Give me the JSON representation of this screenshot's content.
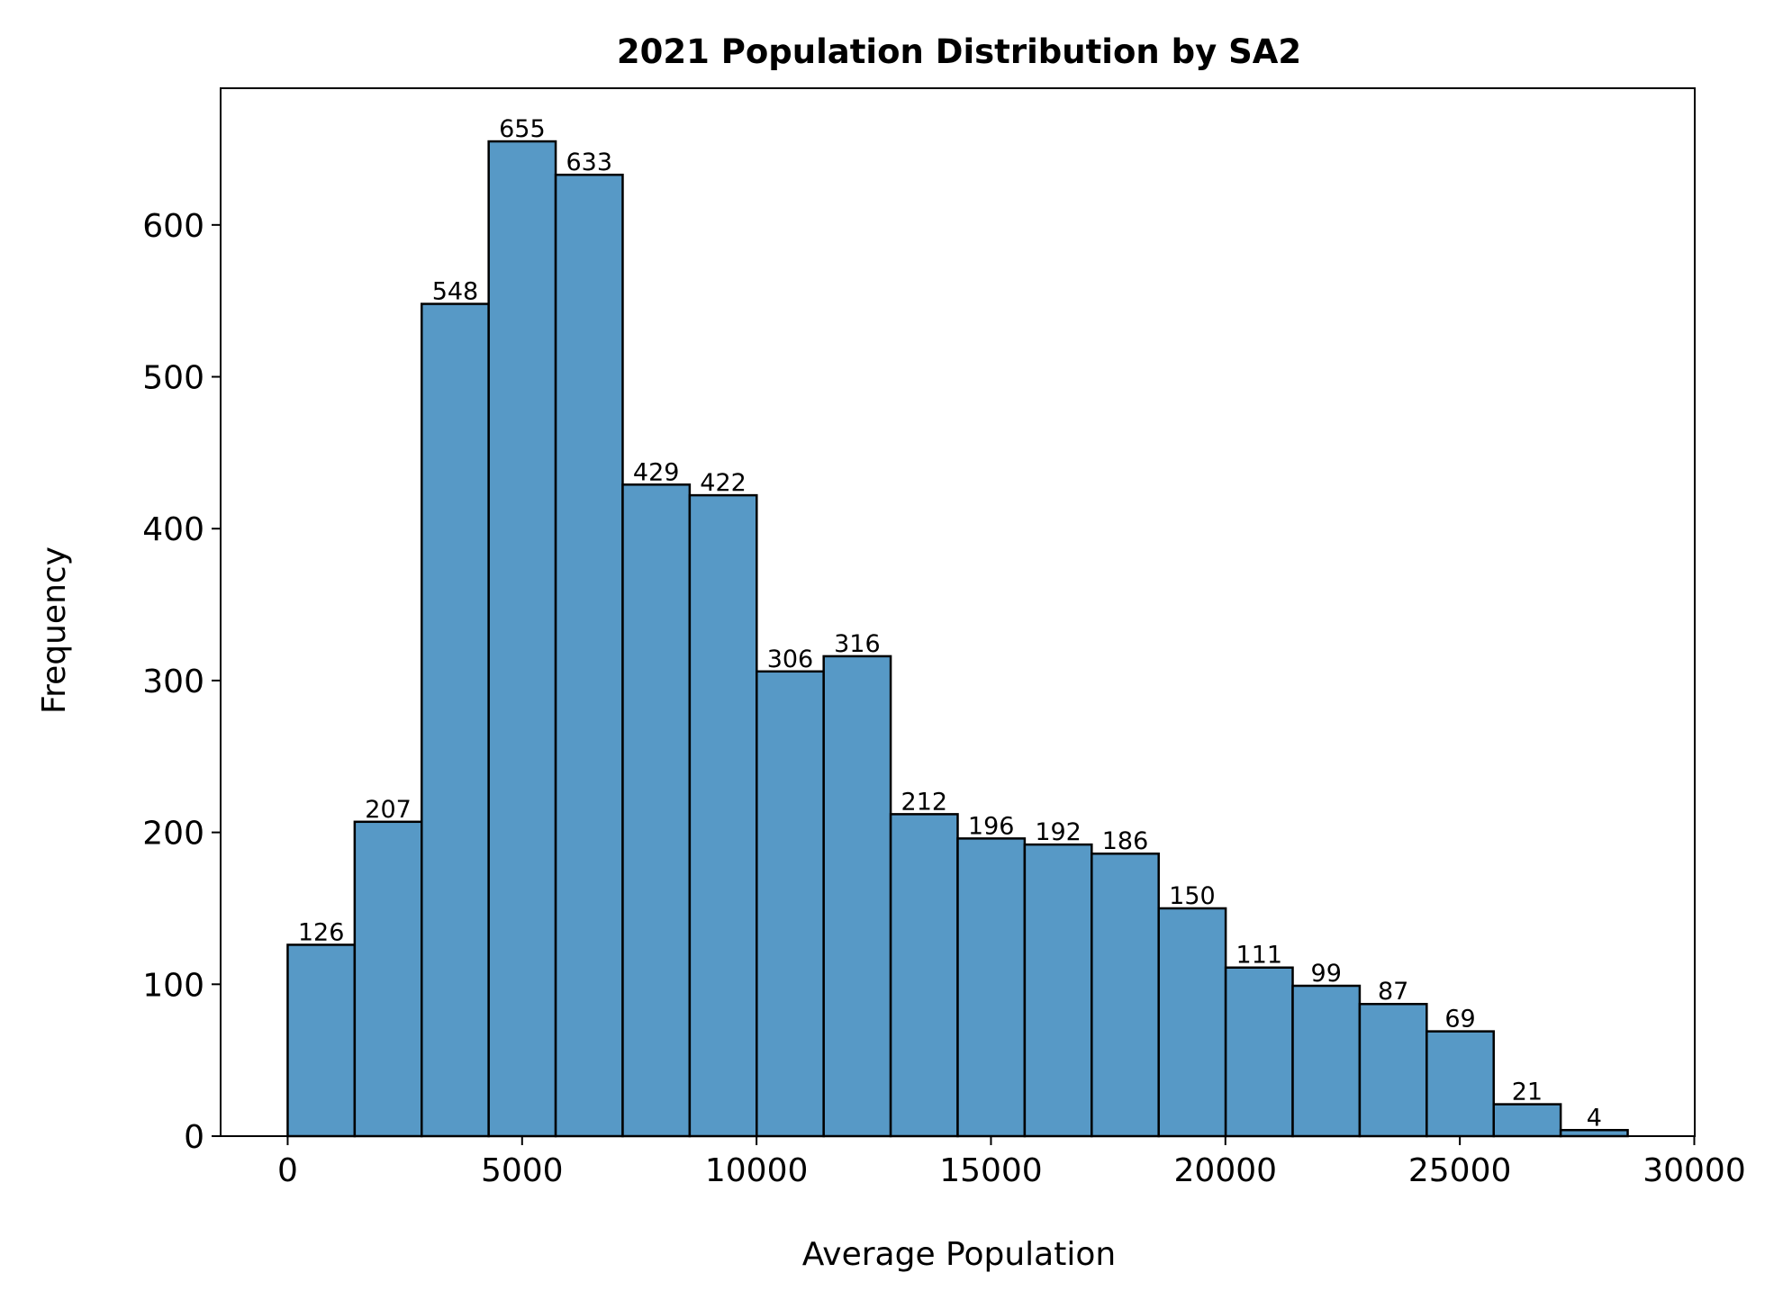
{
  "chart_data": {
    "type": "bar",
    "title": "2021 Population Distribution by SA2",
    "xlabel": "Average Population",
    "ylabel": "Frequency",
    "bin_edges": [
      0,
      1429,
      2858,
      4287,
      5716,
      7145,
      8574,
      10003,
      11432,
      12861,
      14290,
      15719,
      17148,
      18577,
      20006,
      21435,
      22864,
      24293,
      25722,
      27151,
      28580
    ],
    "values": [
      126,
      207,
      548,
      655,
      633,
      429,
      422,
      306,
      316,
      212,
      196,
      192,
      186,
      150,
      111,
      99,
      87,
      69,
      21,
      4
    ],
    "value_labels": [
      "126",
      "207",
      "548",
      "655",
      "633",
      "429",
      "422",
      "306",
      "316",
      "212",
      "196",
      "192",
      "186",
      "150",
      "111",
      "99",
      "87",
      "69",
      "21",
      "4"
    ],
    "xlim": [
      -1430,
      30010
    ],
    "ylim": [
      0,
      690
    ],
    "x_ticks": [
      0,
      5000,
      10000,
      15000,
      20000,
      25000,
      30000
    ],
    "x_tick_labels": [
      "0",
      "5000",
      "10000",
      "15000",
      "20000",
      "25000",
      "30000"
    ],
    "y_ticks": [
      0,
      100,
      200,
      300,
      400,
      500,
      600
    ],
    "y_tick_labels": [
      "0",
      "100",
      "200",
      "300",
      "400",
      "500",
      "600"
    ],
    "grid": false,
    "bar_color": "#5799c6",
    "edge_color": "#000000"
  }
}
